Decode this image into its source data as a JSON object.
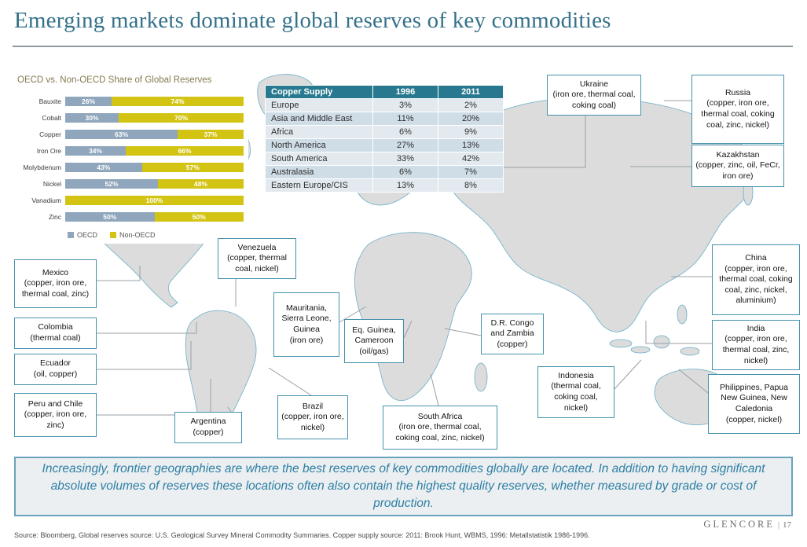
{
  "page": {
    "title": "Emerging markets dominate global reserves of key commodities",
    "brand": "GLENCORE",
    "brand_separator": "|",
    "page_number": "17",
    "source_note": "Source: Bloomberg, Global reserves source: U.S. Geological Survey Mineral Commodity Summaries. Copper supply source: 2011: Brook Hunt, WBMS, 1996: Metallstatistik 1986-1996."
  },
  "banner": {
    "text": "Increasingly, frontier geographies are where the best reserves of key commodities globally are located.  In addition to having significant absolute volumes of reserves these locations often also contain the highest quality reserves, whether measured by grade or cost of production."
  },
  "chart_data": [
    {
      "type": "bar",
      "title": "OECD vs. Non-OECD Share of Global Reserves",
      "orientation": "horizontal",
      "stacked": true,
      "xlim": [
        0,
        100
      ],
      "value_suffix": "%",
      "legend_position": "bottom",
      "grid": false,
      "categories": [
        "Bauxite",
        "Cobalt",
        "Copper",
        "Iron Ore",
        "Molybdenum",
        "Nickel",
        "Vanadium",
        "Zinc"
      ],
      "series": [
        {
          "name": "OECD",
          "color": "#8fa6bc",
          "values": [
            26,
            30,
            63,
            34,
            43,
            52,
            0,
            50
          ]
        },
        {
          "name": "Non-OECD",
          "color": "#d3c414",
          "values": [
            74,
            70,
            37,
            66,
            57,
            48,
            100,
            50
          ]
        }
      ]
    },
    {
      "type": "table",
      "title": "Copper Supply",
      "columns": [
        "Copper Supply",
        "1996",
        "2011"
      ],
      "rows": [
        [
          "Europe",
          "3%",
          "2%"
        ],
        [
          "Asia and Middle East",
          "11%",
          "20%"
        ],
        [
          "Africa",
          "6%",
          "9%"
        ],
        [
          "North America",
          "27%",
          "13%"
        ],
        [
          "South America",
          "33%",
          "42%"
        ],
        [
          "Australasia",
          "6%",
          "7%"
        ],
        [
          "Eastern Europe/CIS",
          "13%",
          "8%"
        ]
      ]
    }
  ],
  "map_callouts": [
    {
      "id": "mexico",
      "name": "Mexico",
      "detail": "(copper, iron ore, thermal coal, zinc)"
    },
    {
      "id": "colombia",
      "name": "Colombia",
      "detail": "(thermal coal)"
    },
    {
      "id": "ecuador",
      "name": "Ecuador",
      "detail": "(oil, copper)"
    },
    {
      "id": "peru-chile",
      "name": "Peru and Chile",
      "detail": "(copper, iron ore, zinc)"
    },
    {
      "id": "venezuela",
      "name": "Venezuela",
      "detail": "(copper, thermal coal, nickel)"
    },
    {
      "id": "argentina",
      "name": "Argentina",
      "detail": "(copper)"
    },
    {
      "id": "brazil",
      "name": "Brazil",
      "detail": "(copper, iron ore, nickel)"
    },
    {
      "id": "mauritania",
      "name": "Mauritania, Sierra Leone, Guinea",
      "detail": "(iron ore)"
    },
    {
      "id": "eq-guinea",
      "name": "Eq. Guinea, Cameroon",
      "detail": "(oil/gas)"
    },
    {
      "id": "south-africa",
      "name": "South Africa",
      "detail": "(iron ore, thermal coal, coking coal, zinc, nickel)"
    },
    {
      "id": "drc-zambia",
      "name": "D.R. Congo and Zambia",
      "detail": "(copper)"
    },
    {
      "id": "indonesia",
      "name": "Indonesia",
      "detail": "(thermal coal, coking coal, nickel)"
    },
    {
      "id": "ukraine",
      "name": "Ukraine",
      "detail": "(iron ore, thermal coal, coking coal)"
    },
    {
      "id": "russia",
      "name": "Russia",
      "detail": "(copper, iron ore, thermal coal, coking coal, zinc, nickel)"
    },
    {
      "id": "kazakhstan",
      "name": "Kazakhstan",
      "detail": "(copper, zinc, oil, FeCr, iron ore)"
    },
    {
      "id": "china",
      "name": "China",
      "detail": "(copper, iron ore, thermal coal, coking coal, zinc, nickel, aluminium)"
    },
    {
      "id": "india",
      "name": "India",
      "detail": "(copper, iron ore, thermal coal, zinc, nickel)"
    },
    {
      "id": "philippines",
      "name": "Philippines, Papua New Guinea, New Caledonia",
      "detail": "(copper, nickel)"
    }
  ],
  "colors": {
    "title_color": "#35718a",
    "oecd": "#8fa6bc",
    "non_oecd": "#d3c414",
    "table_header": "#28798f",
    "callout_border": "#4592ad",
    "map_land": "#dcdcdc",
    "map_outline": "#68aec7",
    "banner_text": "#2f7fa3"
  }
}
